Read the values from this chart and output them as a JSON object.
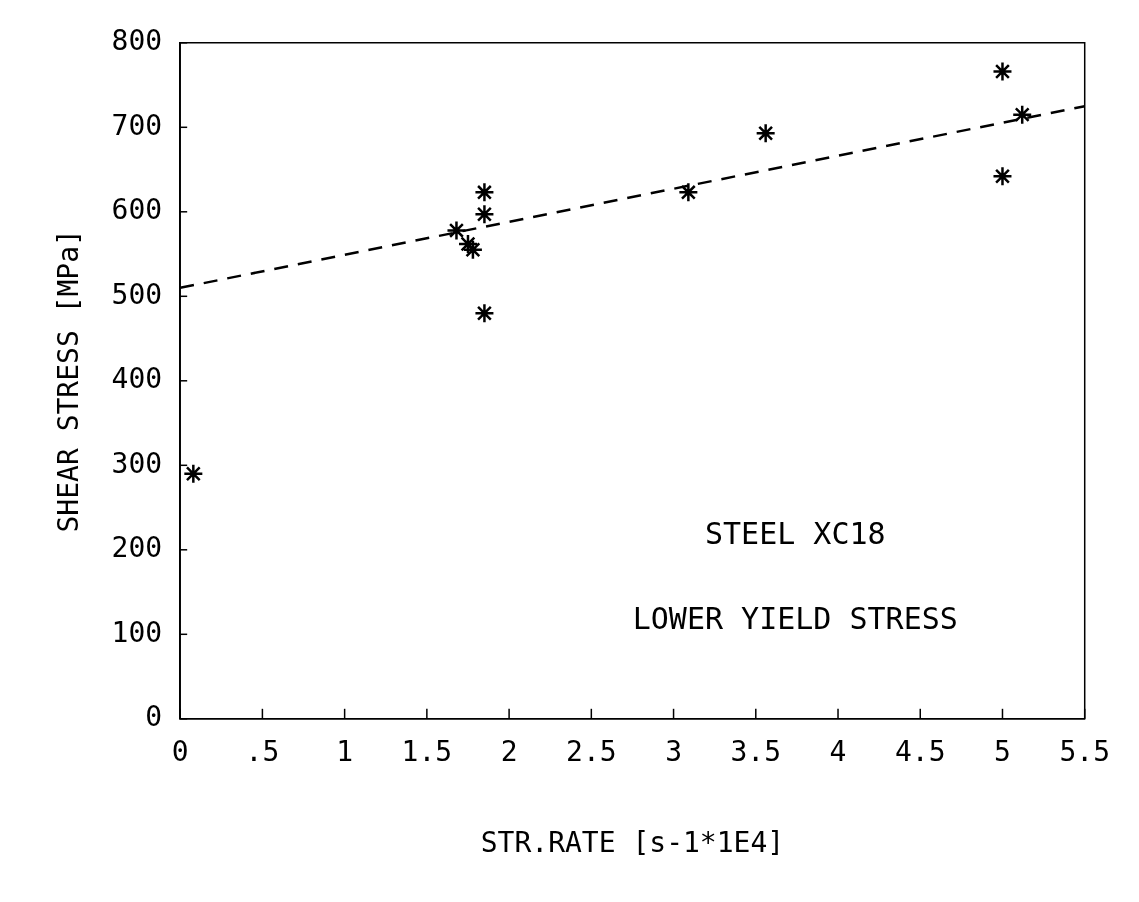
{
  "chart_data": {
    "type": "scatter",
    "xlabel": "STR.RATE [s-1*1E4]",
    "ylabel": "SHEAR STRESS [MPa]",
    "annotations": [
      "STEEL XC18",
      "LOWER YIELD STRESS"
    ],
    "xlim": [
      0,
      5.5
    ],
    "xticks": [
      0,
      {
        "value": 0.5,
        "label": ".5"
      },
      1,
      1.5,
      2,
      2.5,
      3,
      3.5,
      4,
      4.5,
      5,
      5.5
    ],
    "ylim": [
      0,
      800
    ],
    "yticks": [
      0,
      100,
      200,
      300,
      400,
      500,
      600,
      700,
      800
    ],
    "grid": false,
    "legend": false,
    "series": [
      {
        "type": "scatter",
        "color": "#000000",
        "marker": "cross",
        "x": [
          0.08,
          1.68,
          1.75,
          1.78,
          1.85,
          1.85,
          1.85,
          3.09,
          3.56,
          5.0,
          5.12,
          5.0
        ],
        "values": [
          290,
          578,
          562,
          555,
          623,
          597,
          480,
          623,
          693,
          766,
          715,
          642
        ]
      },
      {
        "type": "line",
        "color": "#000000",
        "marker": "none",
        "line_style": "dashed",
        "x": [
          0,
          5.5
        ],
        "values": [
          510,
          725
        ]
      }
    ]
  }
}
